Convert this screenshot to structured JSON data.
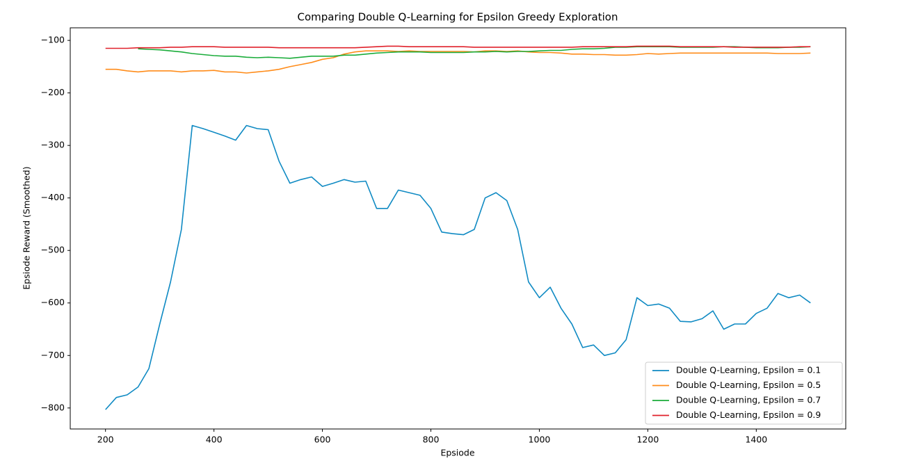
{
  "chart_data": {
    "type": "line",
    "title": "Comparing Double Q-Learning for Epsilon Greedy Exploration",
    "x_label": "Epsiode",
    "y_label": "Epsiode Reward (Smoothed)",
    "x": [
      200,
      220,
      240,
      260,
      280,
      300,
      320,
      340,
      360,
      380,
      400,
      420,
      440,
      460,
      480,
      500,
      520,
      540,
      560,
      580,
      600,
      620,
      640,
      660,
      680,
      700,
      720,
      740,
      760,
      780,
      800,
      820,
      840,
      860,
      880,
      900,
      920,
      940,
      960,
      980,
      1000,
      1020,
      1040,
      1060,
      1080,
      1100,
      1120,
      1140,
      1160,
      1180,
      1200,
      1220,
      1240,
      1260,
      1280,
      1300,
      1320,
      1340,
      1360,
      1380,
      1400,
      1420,
      1440,
      1460,
      1480,
      1500
    ],
    "series": [
      {
        "name": "Double Q-Learning, Epsilon = 0.1",
        "color": "#0f8ac3",
        "values": [
          -803,
          -780,
          -775,
          -760,
          -725,
          -640,
          -560,
          -460,
          -262,
          -268,
          -275,
          -282,
          -290,
          -262,
          -268,
          -270,
          -330,
          -372,
          -365,
          -360,
          -378,
          -372,
          -365,
          -370,
          -368,
          -420,
          -420,
          -385,
          -390,
          -395,
          -420,
          -465,
          -468,
          -470,
          -460,
          -400,
          -390,
          -405,
          -460,
          -560,
          -590,
          -570,
          -610,
          -640,
          -685,
          -680,
          -700,
          -695,
          -670,
          -590,
          -605,
          -602,
          -610,
          -635,
          -636,
          -630,
          -615,
          -650,
          -640,
          -640,
          -620,
          -610,
          -582,
          -590,
          -585,
          -600
        ]
      },
      {
        "name": "Double Q-Learning, Epsilon = 0.5",
        "color": "#ff8c1a",
        "values": [
          -155,
          -155,
          -158,
          -160,
          -158,
          -158,
          -158,
          -160,
          -158,
          -158,
          -157,
          -160,
          -160,
          -162,
          -160,
          -158,
          -155,
          -150,
          -146,
          -142,
          -136,
          -133,
          -126,
          -122,
          -120,
          -120,
          -120,
          -121,
          -120,
          -121,
          -121,
          -121,
          -121,
          -121,
          -122,
          -120,
          -120,
          -121,
          -120,
          -122,
          -123,
          -123,
          -124,
          -126,
          -126,
          -127,
          -127,
          -128,
          -128,
          -127,
          -125,
          -126,
          -125,
          -124,
          -124,
          -124,
          -124,
          -124,
          -124,
          -124,
          -124,
          -124,
          -125,
          -125,
          -125,
          -124
        ]
      },
      {
        "name": "Double Q-Learning, Epsilon = 0.7",
        "color": "#1aac3a",
        "values": [
          null,
          null,
          null,
          -116,
          -117,
          -118,
          -120,
          -122,
          -125,
          -127,
          -129,
          -130,
          -130,
          -132,
          -133,
          -132,
          -133,
          -134,
          -132,
          -130,
          -130,
          -130,
          -128,
          -128,
          -126,
          -124,
          -123,
          -122,
          -122,
          -122,
          -123,
          -123,
          -123,
          -123,
          -122,
          -122,
          -121,
          -122,
          -121,
          -121,
          -120,
          -119,
          -119,
          -117,
          -116,
          -116,
          -115,
          -113,
          -113,
          -112,
          -112,
          -112,
          -112,
          -113,
          -113,
          -113,
          -113,
          -112,
          -112,
          -113,
          -114,
          -114,
          -114,
          -113,
          -113,
          -112
        ]
      },
      {
        "name": "Double Q-Learning, Epsilon = 0.9",
        "color": "#e0202a",
        "values": [
          -115,
          -115,
          -115,
          -114,
          -114,
          -114,
          -113,
          -113,
          -112,
          -112,
          -112,
          -113,
          -113,
          -113,
          -113,
          -113,
          -114,
          -114,
          -114,
          -114,
          -114,
          -114,
          -114,
          -114,
          -113,
          -112,
          -111,
          -111,
          -112,
          -112,
          -112,
          -112,
          -112,
          -112,
          -113,
          -113,
          -113,
          -113,
          -113,
          -113,
          -113,
          -113,
          -113,
          -113,
          -112,
          -112,
          -112,
          -112,
          -112,
          -111,
          -111,
          -111,
          -111,
          -112,
          -112,
          -112,
          -112,
          -112,
          -113,
          -113,
          -113,
          -113,
          -113,
          -113,
          -112,
          -112
        ]
      }
    ],
    "xlim": [
      135,
      1565
    ],
    "ylim": [
      -840,
      -76
    ],
    "xticks": [
      200,
      400,
      600,
      800,
      1000,
      1200,
      1400
    ],
    "yticks": [
      {
        "value": -100,
        "label": "−100"
      },
      {
        "value": -200,
        "label": "−200"
      },
      {
        "value": -300,
        "label": "−300"
      },
      {
        "value": -400,
        "label": "−400"
      },
      {
        "value": -500,
        "label": "−500"
      },
      {
        "value": -600,
        "label": "−600"
      },
      {
        "value": -700,
        "label": "−700"
      },
      {
        "value": -800,
        "label": "−800"
      }
    ],
    "legend": "lower right",
    "grid": false
  }
}
